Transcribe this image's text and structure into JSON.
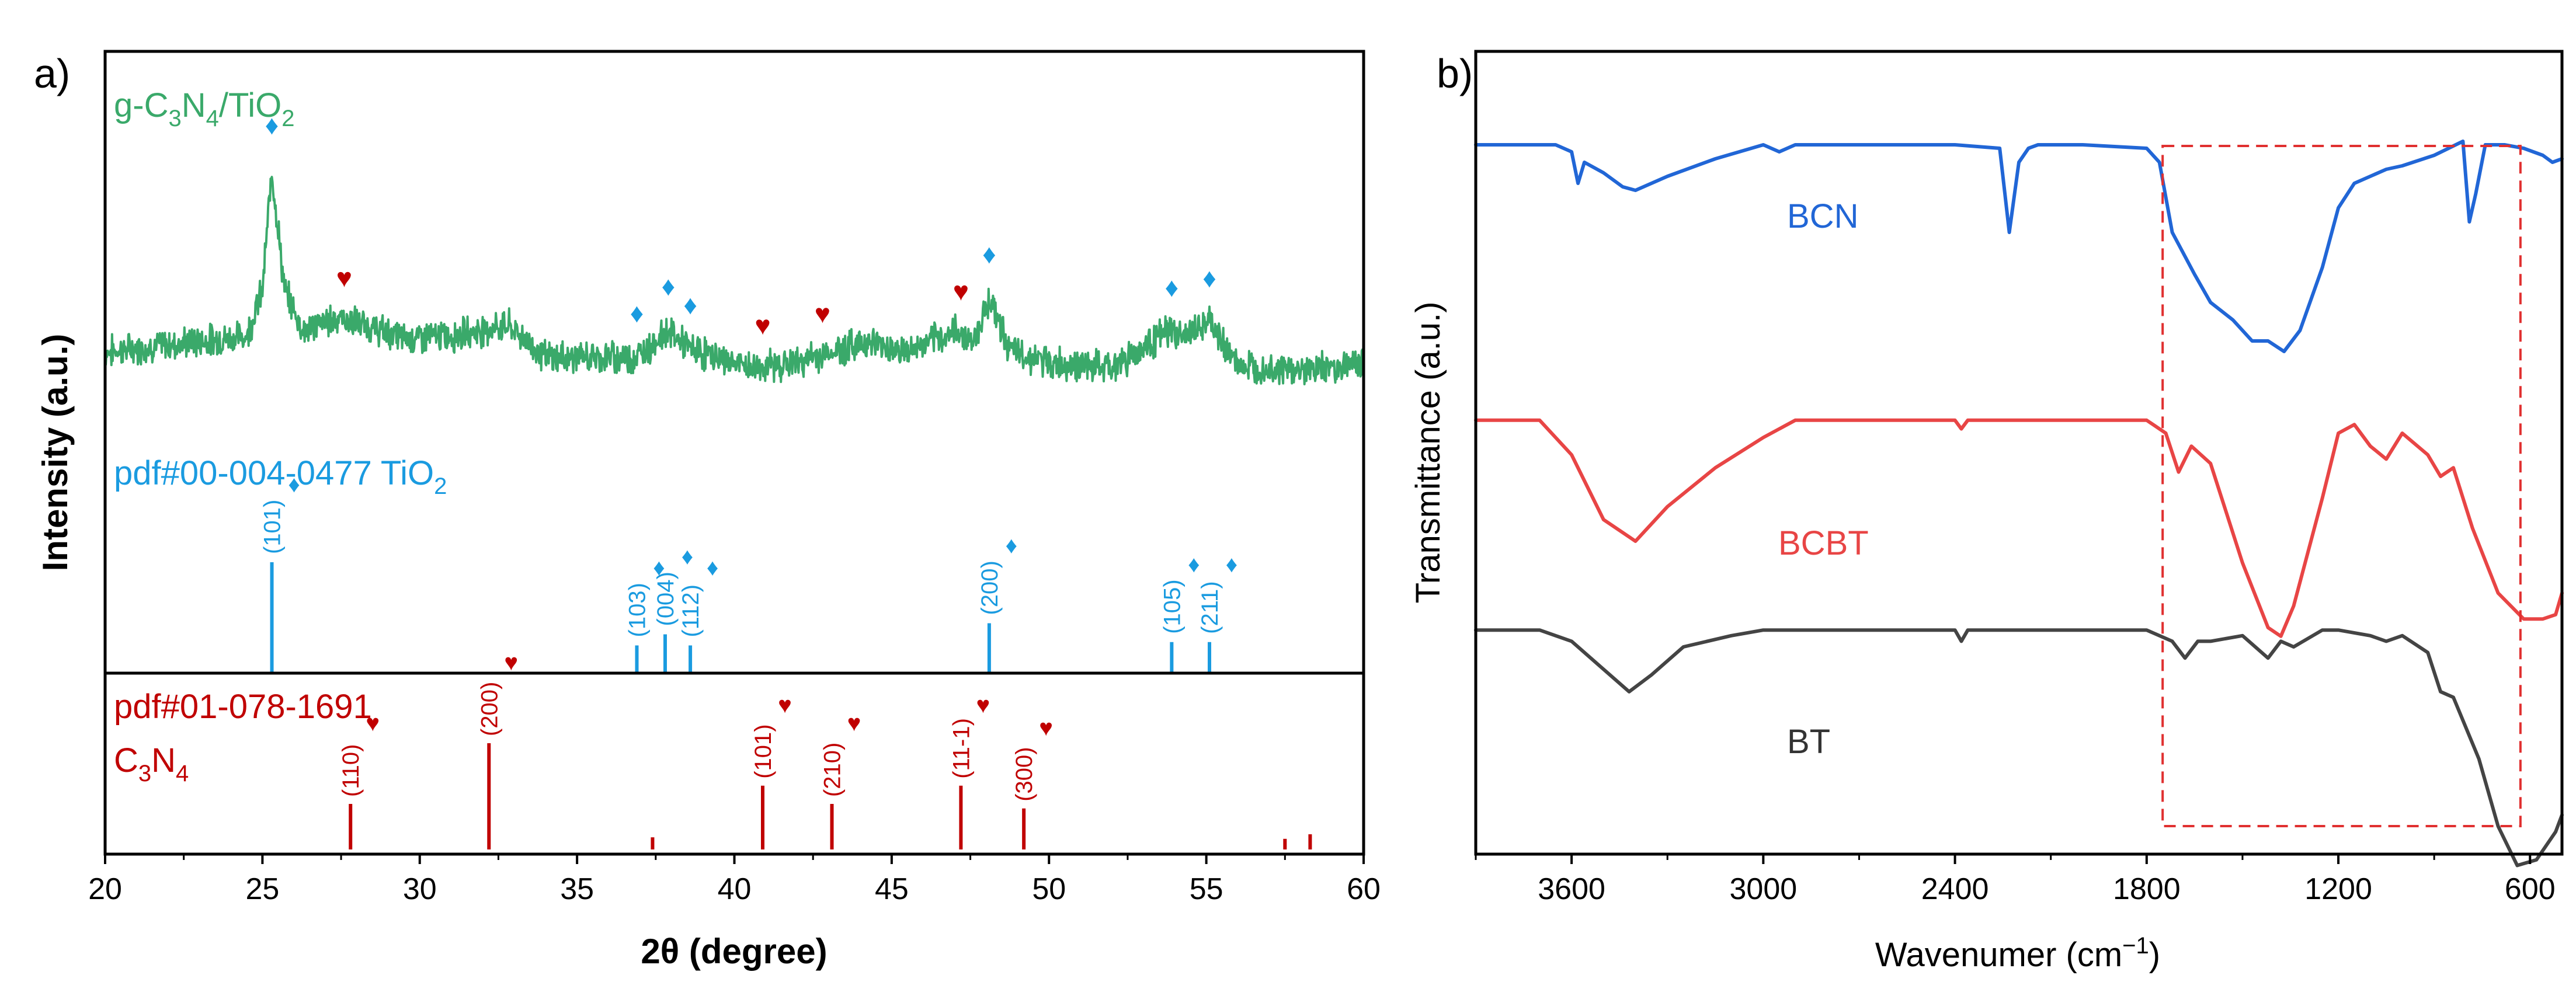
{
  "chart_data": [
    {
      "panel": "a)",
      "type": "line",
      "xlabel": "2θ (degree)",
      "ylabel": "Intensity (a.u.)",
      "xlim": [
        20,
        60
      ],
      "xticks": [
        20,
        25,
        30,
        35,
        40,
        45,
        50,
        55,
        60
      ],
      "colors": {
        "composite": "#3aa96a",
        "tio2": "#1a9be0",
        "c3n4": "#c00000"
      },
      "series_label": "g-C3N4/TiO2",
      "xrd_pattern": {
        "x": [
          20,
          24.5,
          25.0,
          25.3,
          25.7,
          26.3,
          27.4,
          29.5,
          31,
          32.8,
          34,
          36.9,
          37.9,
          38.6,
          40.5,
          42,
          44.2,
          45.5,
          47.1,
          47.6,
          48.1,
          48.8,
          50,
          52,
          53.8,
          54.3,
          55.1,
          56,
          58,
          60
        ],
        "y": [
          0.32,
          0.38,
          0.55,
          1.0,
          0.55,
          0.4,
          0.45,
          0.37,
          0.38,
          0.42,
          0.3,
          0.3,
          0.4,
          0.33,
          0.26,
          0.28,
          0.36,
          0.32,
          0.4,
          0.36,
          0.52,
          0.32,
          0.28,
          0.26,
          0.4,
          0.38,
          0.43,
          0.27,
          0.25,
          0.28
        ]
      },
      "marker_labels": {
        "tio2": "♦",
        "c3n4": "♥"
      },
      "tio2_marker_positions": [
        25.3,
        36.9,
        37.9,
        38.6,
        48.1,
        53.9,
        55.1
      ],
      "c3n4_marker_positions": [
        27.6,
        40.9,
        42.8,
        47.2
      ],
      "tio2_reference": {
        "label": "pdf#00-004-0477 TiO",
        "label_sub": "2",
        "lines": [
          {
            "x": 25.3,
            "hkl": "(101)",
            "height": 1.0
          },
          {
            "x": 36.9,
            "hkl": "(103)",
            "height": 0.25
          },
          {
            "x": 37.8,
            "hkl": "(004)",
            "height": 0.35
          },
          {
            "x": 38.6,
            "hkl": "(112)",
            "height": 0.25
          },
          {
            "x": 48.1,
            "hkl": "(200)",
            "height": 0.45
          },
          {
            "x": 53.9,
            "hkl": "(105)",
            "height": 0.28
          },
          {
            "x": 55.1,
            "hkl": "(211)",
            "height": 0.28
          }
        ]
      },
      "c3n4_reference": {
        "label_line1": "pdf#01-078-1691",
        "label_line2": "C",
        "label_line2_sub": "4",
        "label_line2_mid": "3",
        "label_line2_n": "N",
        "lines": [
          {
            "x": 27.8,
            "hkl": "(110)",
            "height": 0.3
          },
          {
            "x": 32.2,
            "hkl": "(200)",
            "height": 0.7
          },
          {
            "x": 37.4,
            "hkl": "",
            "height": 0.08
          },
          {
            "x": 40.9,
            "hkl": "(101)",
            "height": 0.42
          },
          {
            "x": 43.1,
            "hkl": "(210)",
            "height": 0.3
          },
          {
            "x": 47.2,
            "hkl": "(11-1)",
            "height": 0.42
          },
          {
            "x": 49.2,
            "hkl": "(300)",
            "height": 0.27
          },
          {
            "x": 57.5,
            "hkl": "",
            "height": 0.07
          },
          {
            "x": 58.3,
            "hkl": "",
            "height": 0.1
          }
        ]
      }
    },
    {
      "panel": "b)",
      "type": "line",
      "xlabel": "Wavenumer (cm",
      "xlabel_sup": "−1",
      "xlabel_end": ")",
      "ylabel": "Transmittance (a.u.)",
      "xlim": [
        3900,
        500
      ],
      "xticks": [
        3600,
        3000,
        2400,
        1800,
        1200,
        600
      ],
      "highlight_box": {
        "x_range": [
          1750,
          630
        ],
        "color": "#e03030"
      },
      "series": [
        {
          "name": "BCN",
          "color": "#2166d6",
          "x": [
            3900,
            3650,
            3600,
            3580,
            3560,
            3500,
            3440,
            3400,
            3300,
            3150,
            3000,
            2950,
            2900,
            2400,
            2260,
            2230,
            2200,
            2170,
            2140,
            2000,
            1800,
            1760,
            1720,
            1650,
            1600,
            1530,
            1470,
            1420,
            1370,
            1320,
            1250,
            1200,
            1150,
            1050,
            1000,
            900,
            810,
            790,
            770,
            740,
            680,
            620,
            560,
            530,
            500
          ],
          "y": [
            0.97,
            0.97,
            0.95,
            0.86,
            0.92,
            0.89,
            0.85,
            0.84,
            0.88,
            0.93,
            0.97,
            0.95,
            0.97,
            0.97,
            0.96,
            0.72,
            0.92,
            0.96,
            0.97,
            0.97,
            0.96,
            0.92,
            0.72,
            0.6,
            0.52,
            0.47,
            0.41,
            0.41,
            0.38,
            0.44,
            0.62,
            0.79,
            0.86,
            0.9,
            0.91,
            0.94,
            0.98,
            0.75,
            0.83,
            0.97,
            0.97,
            0.96,
            0.94,
            0.92,
            0.93
          ]
        },
        {
          "name": "BCBT",
          "color": "#e84545",
          "x": [
            3900,
            3700,
            3600,
            3500,
            3400,
            3300,
            3150,
            3000,
            2900,
            2400,
            2380,
            2360,
            1800,
            1740,
            1700,
            1660,
            1600,
            1500,
            1420,
            1380,
            1340,
            1250,
            1200,
            1150,
            1100,
            1050,
            1000,
            920,
            880,
            840,
            780,
            700,
            620,
            560,
            520,
            500
          ],
          "y": [
            0.98,
            0.98,
            0.9,
            0.75,
            0.7,
            0.78,
            0.87,
            0.94,
            0.98,
            0.98,
            0.96,
            0.98,
            0.98,
            0.95,
            0.86,
            0.92,
            0.88,
            0.65,
            0.5,
            0.48,
            0.55,
            0.8,
            0.95,
            0.97,
            0.92,
            0.89,
            0.95,
            0.9,
            0.85,
            0.87,
            0.73,
            0.58,
            0.52,
            0.52,
            0.53,
            0.58
          ]
        },
        {
          "name": "BT",
          "color": "#444444",
          "x": [
            3900,
            3700,
            3600,
            3500,
            3420,
            3350,
            3250,
            3100,
            3000,
            2900,
            2400,
            2380,
            2360,
            1800,
            1720,
            1680,
            1640,
            1600,
            1500,
            1420,
            1380,
            1340,
            1250,
            1200,
            1100,
            1050,
            1000,
            920,
            880,
            840,
            760,
            700,
            640,
            580,
            520,
            500
          ],
          "y": [
            0.98,
            0.98,
            0.96,
            0.91,
            0.87,
            0.9,
            0.95,
            0.97,
            0.98,
            0.98,
            0.98,
            0.96,
            0.98,
            0.98,
            0.96,
            0.93,
            0.96,
            0.96,
            0.97,
            0.93,
            0.96,
            0.95,
            0.98,
            0.98,
            0.97,
            0.96,
            0.97,
            0.94,
            0.87,
            0.86,
            0.75,
            0.63,
            0.56,
            0.57,
            0.62,
            0.65
          ]
        }
      ]
    }
  ]
}
